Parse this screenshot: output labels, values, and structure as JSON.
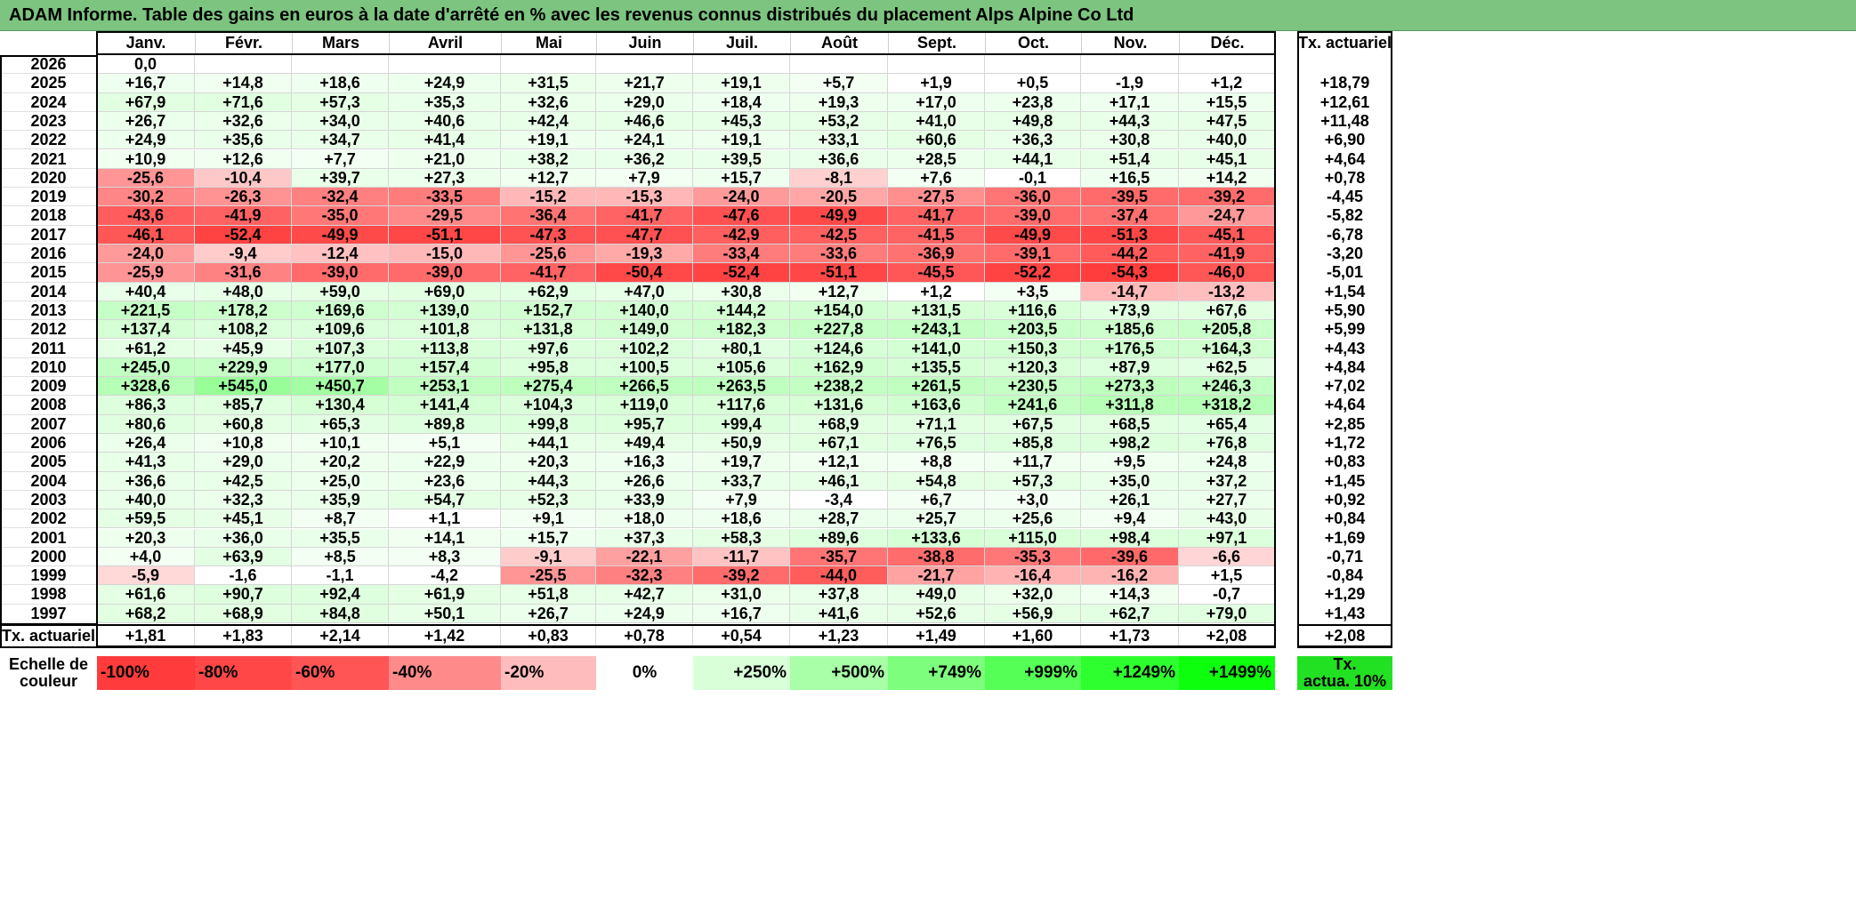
{
  "title": "ADAM Informe. Table des gains en euros à la date d'arrêté en % avec les revenus connus distribués du placement Alps Alpine Co Ltd",
  "chart_data": {
    "type": "heatmap",
    "title": "ADAM Informe. Table des gains en euros à la date d'arrêté en % avec les revenus connus distribués du placement Alps Alpine Co Ltd",
    "columns": [
      "Janv.",
      "Févr.",
      "Mars",
      "Avril",
      "Mai",
      "Juin",
      "Juil.",
      "Août",
      "Sept.",
      "Oct.",
      "Nov.",
      "Déc."
    ],
    "rate_header": "Tx. actuariel",
    "rows": [
      {
        "year": "2026",
        "values": [
          "0,0",
          "",
          "",
          "",
          "",
          "",
          "",
          "",
          "",
          "",
          "",
          ""
        ],
        "rate": ""
      },
      {
        "year": "2025",
        "values": [
          "+16,7",
          "+14,8",
          "+18,6",
          "+24,9",
          "+31,5",
          "+21,7",
          "+19,1",
          "+5,7",
          "+1,9",
          "+0,5",
          "-1,9",
          "+1,2"
        ],
        "rate": "+18,79"
      },
      {
        "year": "2024",
        "values": [
          "+67,9",
          "+71,6",
          "+57,3",
          "+35,3",
          "+32,6",
          "+29,0",
          "+18,4",
          "+19,3",
          "+17,0",
          "+23,8",
          "+17,1",
          "+15,5"
        ],
        "rate": "+12,61"
      },
      {
        "year": "2023",
        "values": [
          "+26,7",
          "+32,6",
          "+34,0",
          "+40,6",
          "+42,4",
          "+46,6",
          "+45,3",
          "+53,2",
          "+41,0",
          "+49,8",
          "+44,3",
          "+47,5"
        ],
        "rate": "+11,48"
      },
      {
        "year": "2022",
        "values": [
          "+24,9",
          "+35,6",
          "+34,7",
          "+41,4",
          "+19,1",
          "+24,1",
          "+19,1",
          "+33,1",
          "+60,6",
          "+36,3",
          "+30,8",
          "+40,0"
        ],
        "rate": "+6,90"
      },
      {
        "year": "2021",
        "values": [
          "+10,9",
          "+12,6",
          "+7,7",
          "+21,0",
          "+38,2",
          "+36,2",
          "+39,5",
          "+36,6",
          "+28,5",
          "+44,1",
          "+51,4",
          "+45,1"
        ],
        "rate": "+4,64"
      },
      {
        "year": "2020",
        "values": [
          "-25,6",
          "-10,4",
          "+39,7",
          "+27,3",
          "+12,7",
          "+7,9",
          "+15,7",
          "-8,1",
          "+7,6",
          "-0,1",
          "+16,5",
          "+14,2"
        ],
        "rate": "+0,78"
      },
      {
        "year": "2019",
        "values": [
          "-30,2",
          "-26,3",
          "-32,4",
          "-33,5",
          "-15,2",
          "-15,3",
          "-24,0",
          "-20,5",
          "-27,5",
          "-36,0",
          "-39,5",
          "-39,2"
        ],
        "rate": "-4,45"
      },
      {
        "year": "2018",
        "values": [
          "-43,6",
          "-41,9",
          "-35,0",
          "-29,5",
          "-36,4",
          "-41,7",
          "-47,6",
          "-49,9",
          "-41,7",
          "-39,0",
          "-37,4",
          "-24,7"
        ],
        "rate": "-5,82"
      },
      {
        "year": "2017",
        "values": [
          "-46,1",
          "-52,4",
          "-49,9",
          "-51,1",
          "-47,3",
          "-47,7",
          "-42,9",
          "-42,5",
          "-41,5",
          "-49,9",
          "-51,3",
          "-45,1"
        ],
        "rate": "-6,78"
      },
      {
        "year": "2016",
        "values": [
          "-24,0",
          "-9,4",
          "-12,4",
          "-15,0",
          "-25,6",
          "-19,3",
          "-33,4",
          "-33,6",
          "-36,9",
          "-39,1",
          "-44,2",
          "-41,9"
        ],
        "rate": "-3,20"
      },
      {
        "year": "2015",
        "values": [
          "-25,9",
          "-31,6",
          "-39,0",
          "-39,0",
          "-41,7",
          "-50,4",
          "-52,4",
          "-51,1",
          "-45,5",
          "-52,2",
          "-54,3",
          "-46,0"
        ],
        "rate": "-5,01"
      },
      {
        "year": "2014",
        "values": [
          "+40,4",
          "+48,0",
          "+59,0",
          "+69,0",
          "+62,9",
          "+47,0",
          "+30,8",
          "+12,7",
          "+1,2",
          "+3,5",
          "-14,7",
          "-13,2"
        ],
        "rate": "+1,54"
      },
      {
        "year": "2013",
        "values": [
          "+221,5",
          "+178,2",
          "+169,6",
          "+139,0",
          "+152,7",
          "+140,0",
          "+144,2",
          "+154,0",
          "+131,5",
          "+116,6",
          "+73,9",
          "+67,6"
        ],
        "rate": "+5,90"
      },
      {
        "year": "2012",
        "values": [
          "+137,4",
          "+108,2",
          "+109,6",
          "+101,8",
          "+131,8",
          "+149,0",
          "+182,3",
          "+227,8",
          "+243,1",
          "+203,5",
          "+185,6",
          "+205,8"
        ],
        "rate": "+5,99"
      },
      {
        "year": "2011",
        "values": [
          "+61,2",
          "+45,9",
          "+107,3",
          "+113,8",
          "+97,6",
          "+102,2",
          "+80,1",
          "+124,6",
          "+141,0",
          "+150,3",
          "+176,5",
          "+164,3"
        ],
        "rate": "+4,43"
      },
      {
        "year": "2010",
        "values": [
          "+245,0",
          "+229,9",
          "+177,0",
          "+157,4",
          "+95,8",
          "+100,5",
          "+105,6",
          "+162,9",
          "+135,5",
          "+120,3",
          "+87,9",
          "+62,5"
        ],
        "rate": "+4,84"
      },
      {
        "year": "2009",
        "values": [
          "+328,6",
          "+545,0",
          "+450,7",
          "+253,1",
          "+275,4",
          "+266,5",
          "+263,5",
          "+238,2",
          "+261,5",
          "+230,5",
          "+273,3",
          "+246,3"
        ],
        "rate": "+7,02"
      },
      {
        "year": "2008",
        "values": [
          "+86,3",
          "+85,7",
          "+130,4",
          "+141,4",
          "+104,3",
          "+119,0",
          "+117,6",
          "+131,6",
          "+163,6",
          "+241,6",
          "+311,8",
          "+318,2"
        ],
        "rate": "+4,64"
      },
      {
        "year": "2007",
        "values": [
          "+80,6",
          "+60,8",
          "+65,3",
          "+89,8",
          "+99,8",
          "+95,7",
          "+99,4",
          "+68,9",
          "+71,1",
          "+67,5",
          "+68,5",
          "+65,4"
        ],
        "rate": "+2,85"
      },
      {
        "year": "2006",
        "values": [
          "+26,4",
          "+10,8",
          "+10,1",
          "+5,1",
          "+44,1",
          "+49,4",
          "+50,9",
          "+67,1",
          "+76,5",
          "+85,8",
          "+98,2",
          "+76,8"
        ],
        "rate": "+1,72"
      },
      {
        "year": "2005",
        "values": [
          "+41,3",
          "+29,0",
          "+20,2",
          "+22,9",
          "+20,3",
          "+16,3",
          "+19,7",
          "+12,1",
          "+8,8",
          "+11,7",
          "+9,5",
          "+24,8"
        ],
        "rate": "+0,83"
      },
      {
        "year": "2004",
        "values": [
          "+36,6",
          "+42,5",
          "+25,0",
          "+23,6",
          "+44,3",
          "+26,6",
          "+33,7",
          "+46,1",
          "+54,8",
          "+57,3",
          "+35,0",
          "+37,2"
        ],
        "rate": "+1,45"
      },
      {
        "year": "2003",
        "values": [
          "+40,0",
          "+32,3",
          "+35,9",
          "+54,7",
          "+52,3",
          "+33,9",
          "+7,9",
          "-3,4",
          "+6,7",
          "+3,0",
          "+26,1",
          "+27,7"
        ],
        "rate": "+0,92"
      },
      {
        "year": "2002",
        "values": [
          "+59,5",
          "+45,1",
          "+8,7",
          "+1,1",
          "+9,1",
          "+18,0",
          "+18,6",
          "+28,7",
          "+25,7",
          "+25,6",
          "+9,4",
          "+43,0"
        ],
        "rate": "+0,84"
      },
      {
        "year": "2001",
        "values": [
          "+20,3",
          "+36,0",
          "+35,5",
          "+14,1",
          "+15,7",
          "+37,3",
          "+58,3",
          "+89,6",
          "+133,6",
          "+115,0",
          "+98,4",
          "+97,1"
        ],
        "rate": "+1,69"
      },
      {
        "year": "2000",
        "values": [
          "+4,0",
          "+63,9",
          "+8,5",
          "+8,3",
          "-9,1",
          "-22,1",
          "-11,7",
          "-35,7",
          "-38,8",
          "-35,3",
          "-39,6",
          "-6,6"
        ],
        "rate": "-0,71"
      },
      {
        "year": "1999",
        "values": [
          "-5,9",
          "-1,6",
          "-1,1",
          "-4,2",
          "-25,5",
          "-32,3",
          "-39,2",
          "-44,0",
          "-21,7",
          "-16,4",
          "-16,2",
          "+1,5"
        ],
        "rate": "-0,84"
      },
      {
        "year": "1998",
        "values": [
          "+61,6",
          "+90,7",
          "+92,4",
          "+61,9",
          "+51,8",
          "+42,7",
          "+31,0",
          "+37,8",
          "+49,0",
          "+32,0",
          "+14,3",
          "-0,7"
        ],
        "rate": "+1,29"
      },
      {
        "year": "1997",
        "values": [
          "+68,2",
          "+68,9",
          "+84,8",
          "+50,1",
          "+26,7",
          "+24,9",
          "+16,7",
          "+41,6",
          "+52,6",
          "+56,9",
          "+62,7",
          "+79,0"
        ],
        "rate": "+1,43"
      }
    ],
    "totals_label": "Tx. actuariel",
    "totals": [
      "+1,81",
      "+1,83",
      "+2,14",
      "+1,42",
      "+0,83",
      "+0,78",
      "+0,54",
      "+1,23",
      "+1,49",
      "+1,60",
      "+1,73",
      "+2,08"
    ],
    "totals_rate": "+2,08",
    "scale_label": [
      "Echelle de",
      "couleur"
    ],
    "scale": [
      {
        "label": "-100%",
        "value": -100,
        "color": "#ff3b3b"
      },
      {
        "label": "-80%",
        "value": -80,
        "color": "#ff4747"
      },
      {
        "label": "-60%",
        "value": -60,
        "color": "#ff5555"
      },
      {
        "label": "-40%",
        "value": -40,
        "color": "#ff8a8a"
      },
      {
        "label": "-20%",
        "value": -20,
        "color": "#ffbcbc"
      },
      {
        "label": "0%",
        "value": 0,
        "color": "#ffffff"
      },
      {
        "label": "+250%",
        "value": 250,
        "color": "#d8ffd8"
      },
      {
        "label": "+500%",
        "value": 500,
        "color": "#a8ffa8"
      },
      {
        "label": "+749%",
        "value": 749,
        "color": "#7dff7d"
      },
      {
        "label": "+999%",
        "value": 999,
        "color": "#55ff55"
      },
      {
        "label": "+1249%",
        "value": 1249,
        "color": "#2eff2e"
      },
      {
        "label": "+1499%",
        "value": 1499,
        "color": "#0dff0d"
      }
    ],
    "scale_rate_label": [
      "Tx.",
      "actua. 10%"
    ],
    "scale_rate_color": "#22e022"
  }
}
